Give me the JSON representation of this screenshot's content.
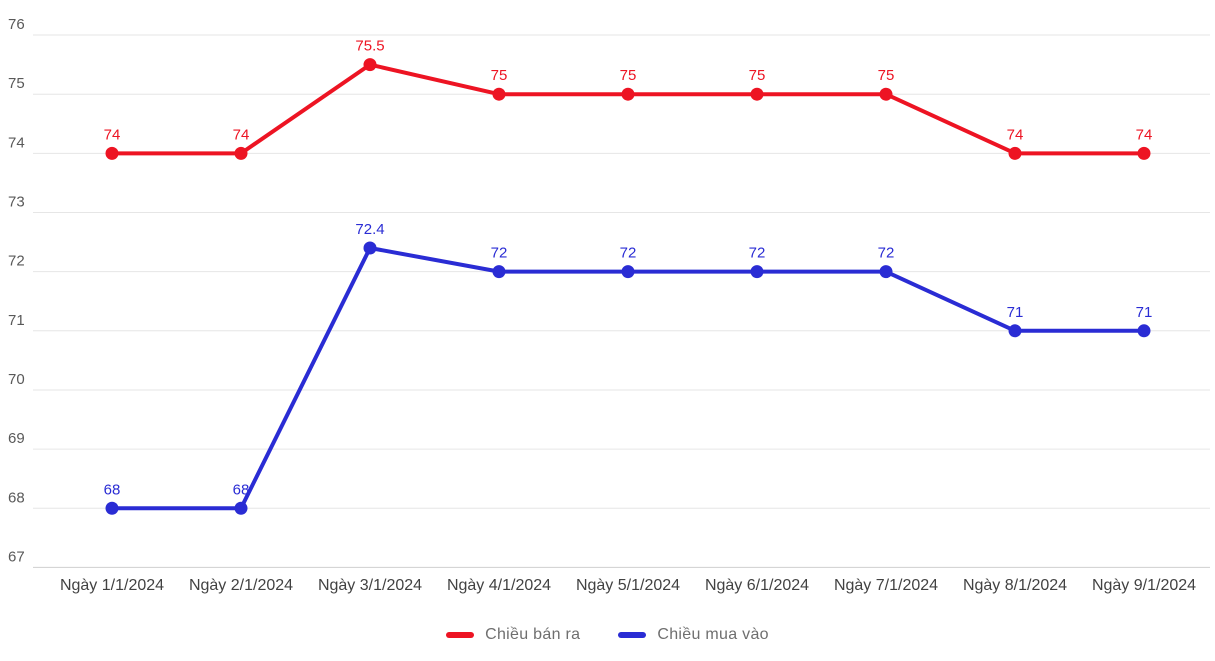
{
  "chart_data": {
    "type": "line",
    "title": "",
    "xlabel": "",
    "ylabel": "",
    "categories": [
      "Ngày 1/1/2024",
      "Ngày 2/1/2024",
      "Ngày 3/1/2024",
      "Ngày 4/1/2024",
      "Ngày 5/1/2024",
      "Ngày 6/1/2024",
      "Ngày 7/1/2024",
      "Ngày 8/1/2024",
      "Ngày 9/1/2024"
    ],
    "series": [
      {
        "name": "Chiều bán ra",
        "color": "#ed1423",
        "values": [
          74,
          74,
          75.5,
          75,
          75,
          75,
          75,
          74,
          74
        ]
      },
      {
        "name": "Chiều mua vào",
        "color": "#2a2cd4",
        "values": [
          68,
          68,
          72.4,
          72,
          72,
          72,
          72,
          71,
          71
        ]
      }
    ],
    "yticks": [
      76,
      75,
      74,
      73,
      72,
      71,
      70,
      69,
      68,
      67
    ],
    "ylim": [
      67,
      76
    ],
    "grid": "horizontal-only",
    "legend_position": "bottom",
    "data_labels_shown": true
  },
  "style_colors": {
    "gridline": "#e6e6e6",
    "baseline_axis": "#cfcfcf",
    "y_tick_label": "#595959",
    "x_tick_label": "#424242",
    "legend_text": "#6f6f6f",
    "background": "#ffffff"
  }
}
